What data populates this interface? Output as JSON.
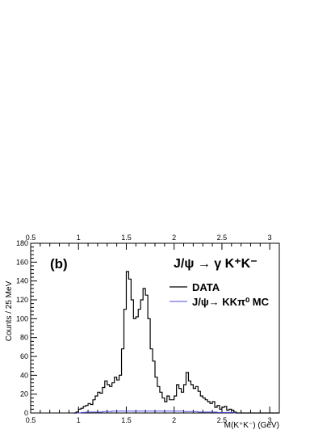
{
  "chart_data": {
    "type": "histogram",
    "panel_label": "(b)",
    "title": "J/ψ → γ K⁺K⁻",
    "xlabel": "M(K⁺K⁻) (GeV)",
    "ylabel": "Counts / 25 MeV",
    "xlim": [
      0.5,
      3.1
    ],
    "ylim": [
      0,
      180
    ],
    "x_ticks": [
      "0.5",
      "1",
      "1.5",
      "2",
      "2.5",
      "3"
    ],
    "x_tick_values": [
      0.5,
      1.0,
      1.5,
      2.0,
      2.5,
      3.0
    ],
    "top_x_ticks": [
      "0.5",
      "1",
      "1.5",
      "2",
      "2.5",
      "3"
    ],
    "y_ticks": [
      "0",
      "20",
      "40",
      "60",
      "80",
      "100",
      "120",
      "140",
      "160",
      "180"
    ],
    "y_tick_values": [
      0,
      20,
      40,
      60,
      80,
      100,
      120,
      140,
      160,
      180
    ],
    "bin_width": 0.025,
    "bin_start": 0.975,
    "legend_position": "top-right",
    "series": [
      {
        "name": "DATA",
        "color": "#000000",
        "values": [
          1,
          4,
          5,
          7,
          8,
          10,
          9,
          14,
          18,
          22,
          21,
          27,
          34,
          30,
          28,
          32,
          38,
          35,
          40,
          68,
          110,
          150,
          142,
          120,
          100,
          102,
          110,
          120,
          132,
          125,
          100,
          68,
          55,
          38,
          28,
          22,
          16,
          12,
          18,
          14,
          14,
          18,
          30,
          26,
          22,
          30,
          43,
          34,
          30,
          26,
          28,
          23,
          18,
          16,
          14,
          12,
          10,
          12,
          6,
          8,
          4,
          6,
          7,
          3,
          4,
          3,
          1
        ]
      },
      {
        "name": "J/ψ→ KKπ⁰ MC",
        "color": "#4a4adb",
        "values": [
          0,
          0,
          0.5,
          0.5,
          1,
          1,
          1,
          1,
          1,
          1,
          1,
          1.5,
          1.5,
          1.5,
          1.5,
          2,
          2,
          2,
          2,
          2,
          2,
          2,
          2,
          2,
          2,
          2,
          2,
          2,
          2,
          2,
          2,
          2,
          2,
          2,
          2,
          2,
          2,
          2,
          2,
          2,
          2,
          2,
          2,
          2,
          2,
          1.5,
          1.5,
          1.5,
          1.5,
          1.5,
          1.5,
          1,
          1,
          1,
          1,
          1,
          1,
          1,
          1,
          0.5,
          0.5,
          0.5,
          0.5,
          0.5,
          0.5,
          0.5,
          0
        ]
      }
    ]
  }
}
